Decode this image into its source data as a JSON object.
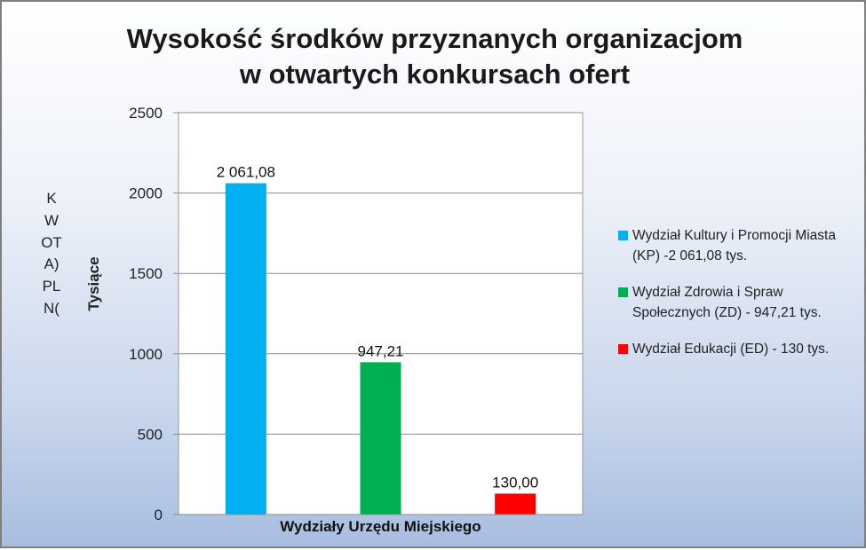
{
  "chart_data": {
    "type": "bar",
    "title": [
      "Wysokość środków przyznanych organizacjom",
      "w otwartych konkursach ofert"
    ],
    "xlabel": "Wydziały Urzędu Miejskiego",
    "ylabel": "Tysiące",
    "side_label": "KWOTA)PLN(",
    "ylim": [
      0,
      2500
    ],
    "yticks": [
      0,
      500,
      1000,
      1500,
      2000,
      2500
    ],
    "grid": true,
    "legend_position": "right",
    "series": [
      {
        "name": "Wydział Kultury i Promocji Miasta (KP) -2 061,08 tys.",
        "value": 2061.08,
        "label": "2 061,08",
        "color": "#00b0f0"
      },
      {
        "name": "Wydział Zdrowia i Spraw Społecznych (ZD) - 947,21 tys.",
        "value": 947.21,
        "label": "947,21",
        "color": "#00b050"
      },
      {
        "name": "Wydział Edukacji (ED) - 130 tys.",
        "value": 130.0,
        "label": "130,00",
        "color": "#ff0000"
      }
    ]
  }
}
